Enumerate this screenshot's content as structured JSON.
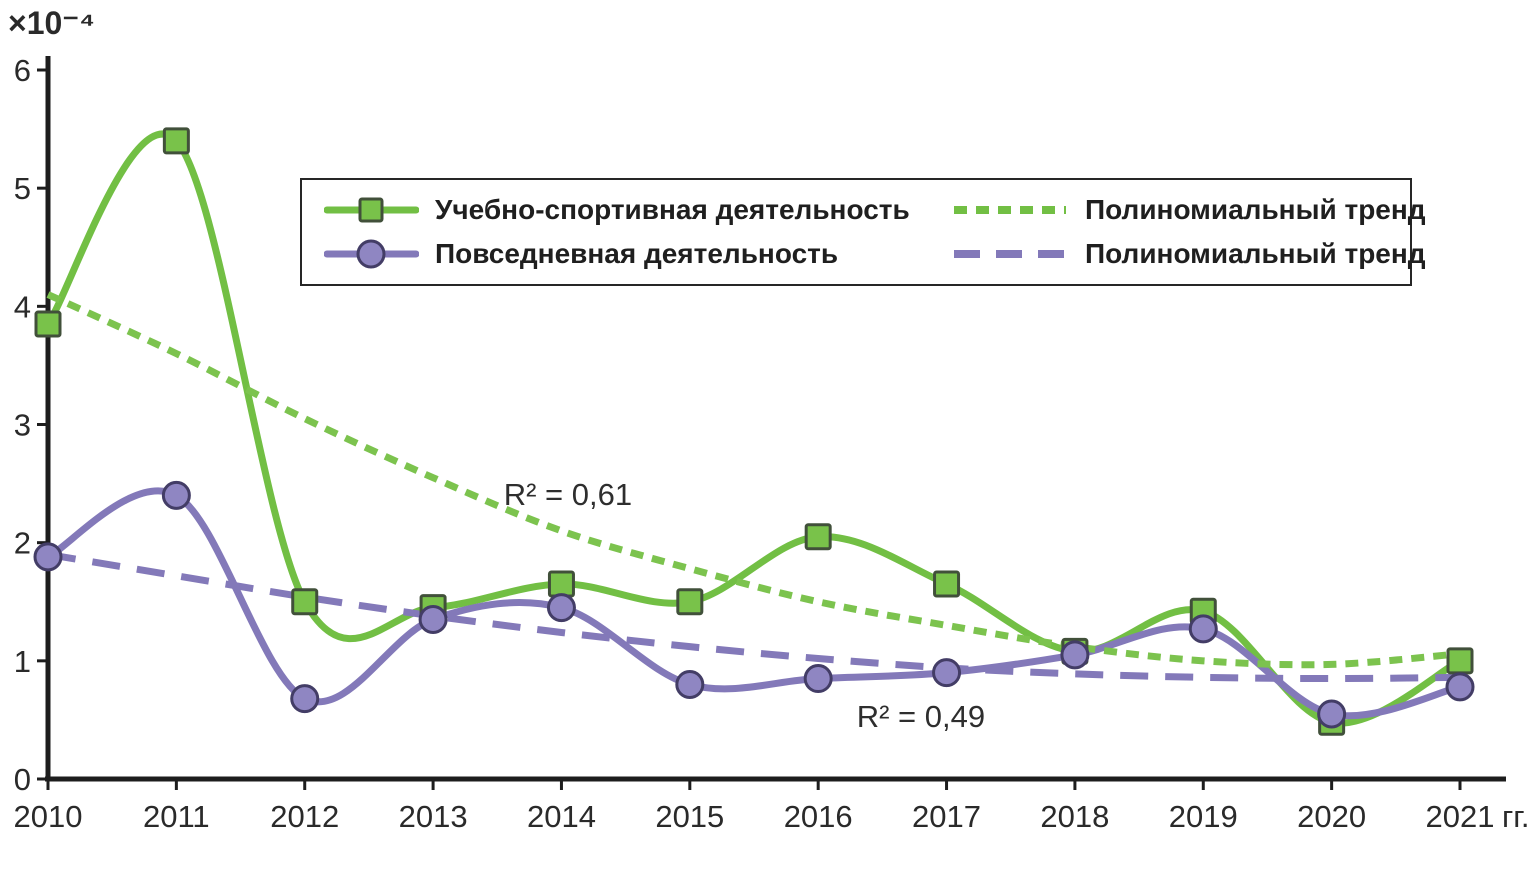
{
  "page": {
    "background": "#ffffff"
  },
  "chart_data": {
    "type": "line",
    "title": "",
    "x": [
      2010,
      2011,
      2012,
      2013,
      2014,
      2015,
      2016,
      2017,
      2018,
      2019,
      2020,
      2021
    ],
    "x_axis_suffix": "гг.",
    "y_axis_unit": "×10⁻⁴",
    "y_ticks": [
      0,
      1,
      2,
      3,
      4,
      5,
      6
    ],
    "ylim": [
      0,
      6
    ],
    "grid": false,
    "legend_position": "top-center-inside",
    "axis_color": "#1d1d1d",
    "tick_label_color": "#2a2a2a",
    "series": [
      {
        "name": "Учебно-спортивная деятельность",
        "type": "data",
        "style": "solid",
        "marker": "square",
        "color": "#72bf44",
        "marker_fill": "#79c24a",
        "marker_edge": "#41503a",
        "values": [
          3.85,
          5.4,
          1.5,
          1.45,
          1.65,
          1.5,
          2.05,
          1.65,
          1.08,
          1.42,
          0.48,
          1.0
        ]
      },
      {
        "name": "Повседневная деятельность",
        "type": "data",
        "style": "solid",
        "marker": "circle",
        "color": "#8379b9",
        "marker_fill": "#8f86c2",
        "marker_edge": "#433d66",
        "values": [
          1.88,
          2.4,
          0.68,
          1.35,
          1.45,
          0.8,
          0.85,
          0.9,
          1.05,
          1.27,
          0.55,
          0.78
        ]
      },
      {
        "name": "Полиномиальный тренд",
        "type": "trend",
        "style": "dotted",
        "marker": null,
        "color": "#7cc34e",
        "r_squared": "R² = 0,61",
        "values": [
          4.1,
          3.6,
          3.05,
          2.55,
          2.1,
          1.78,
          1.5,
          1.3,
          1.12,
          1.0,
          0.97,
          1.06
        ]
      },
      {
        "name": "Полиномиальный тренд",
        "type": "trend",
        "style": "dashed",
        "marker": null,
        "color": "#8379b9",
        "r_squared": "R² = 0,49",
        "values": [
          1.9,
          1.72,
          1.54,
          1.38,
          1.24,
          1.12,
          1.02,
          0.94,
          0.89,
          0.86,
          0.85,
          0.86
        ]
      }
    ],
    "annotations": [
      {
        "text": "R² = 0,61",
        "x": 2013.55,
        "y": 2.32,
        "color": "#2e2e2e"
      },
      {
        "text": "R² = 0,49",
        "x": 2016.3,
        "y": 0.44,
        "color": "#2e2e2e"
      }
    ],
    "legend": {
      "rows": [
        {
          "series_label": "Учебно-спортивная деятельность",
          "trend_label": "Полиномиальный тренд"
        },
        {
          "series_label": "Повседневная деятельность",
          "trend_label": "Полиномиальный тренд"
        }
      ]
    }
  }
}
